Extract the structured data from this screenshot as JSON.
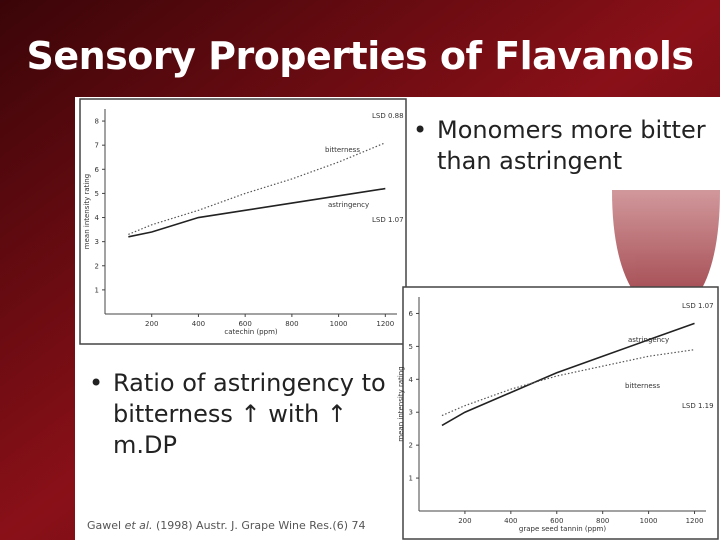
{
  "title": "Sensory Properties of Flavanols",
  "bullets": [
    "Monomers more bitter than astringent",
    "Ratio of astringency to bitterness ↑ with ↑ m.DP"
  ],
  "citation": {
    "authors": "Gawel ",
    "etal": "et al.",
    "rest": " (1998) Austr. J. Grape Wine Res.(6) 74"
  },
  "chart_data": [
    {
      "type": "line",
      "xlabel": "catechin (ppm)",
      "ylabel": "mean intensity rating",
      "x": [
        100,
        200,
        400,
        600,
        800,
        1000,
        1200
      ],
      "series": [
        {
          "name": "bitterness",
          "color": "#555",
          "dashed": true,
          "values": [
            3.3,
            3.7,
            4.3,
            5.0,
            5.6,
            6.3,
            7.1
          ]
        },
        {
          "name": "astringency",
          "color": "#222",
          "dashed": false,
          "values": [
            3.2,
            3.4,
            4.0,
            4.3,
            4.6,
            4.9,
            5.2
          ]
        }
      ],
      "annotations": [
        "LSD 0.88",
        "LSD 1.07"
      ],
      "xlim": [
        0,
        1250
      ],
      "xticks": [
        200,
        400,
        600,
        800,
        1000,
        1200
      ],
      "ylim": [
        0,
        8.5
      ],
      "yticks": [
        1,
        2,
        3,
        4,
        5,
        6,
        7,
        8
      ]
    },
    {
      "type": "line",
      "xlabel": "grape seed tannin (ppm)",
      "ylabel": "mean intensity rating",
      "x": [
        100,
        200,
        400,
        600,
        800,
        1000,
        1200
      ],
      "series": [
        {
          "name": "astringency",
          "color": "#222",
          "dashed": false,
          "values": [
            2.6,
            3.0,
            3.6,
            4.2,
            4.7,
            5.2,
            5.7
          ]
        },
        {
          "name": "bitterness",
          "color": "#555",
          "dashed": true,
          "values": [
            2.9,
            3.2,
            3.7,
            4.1,
            4.4,
            4.7,
            4.9
          ]
        }
      ],
      "annotations": [
        "LSD 1.07",
        "LSD 1.19"
      ],
      "xlim": [
        0,
        1250
      ],
      "xticks": [
        200,
        400,
        600,
        800,
        1000,
        1200
      ],
      "ylim": [
        0,
        6.5
      ],
      "yticks": [
        1,
        2,
        3,
        4,
        5,
        6
      ]
    }
  ]
}
